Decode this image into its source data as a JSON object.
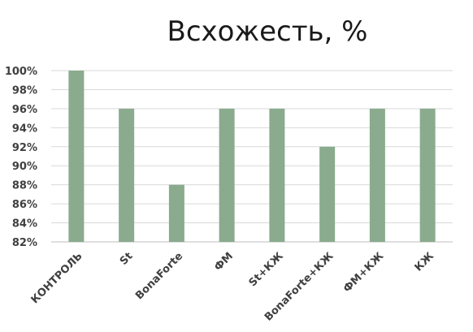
{
  "chart_data": {
    "type": "bar",
    "title": "Всхожесть, %",
    "xlabel": "",
    "ylabel": "",
    "categories": [
      "КОНТРОЛЬ",
      "St",
      "BonaForte",
      "ФМ",
      "St+КЖ",
      "BonaForte+КЖ",
      "ФМ+КЖ",
      "КЖ"
    ],
    "values": [
      100,
      96,
      88,
      96,
      96,
      92,
      96,
      96
    ],
    "ylim": [
      82,
      100
    ],
    "yticks": [
      "82%",
      "84%",
      "86%",
      "88%",
      "90%",
      "92%",
      "94%",
      "96%",
      "98%",
      "100%"
    ],
    "grid": true,
    "legend": "none",
    "bar_color": "#8aab8e"
  }
}
